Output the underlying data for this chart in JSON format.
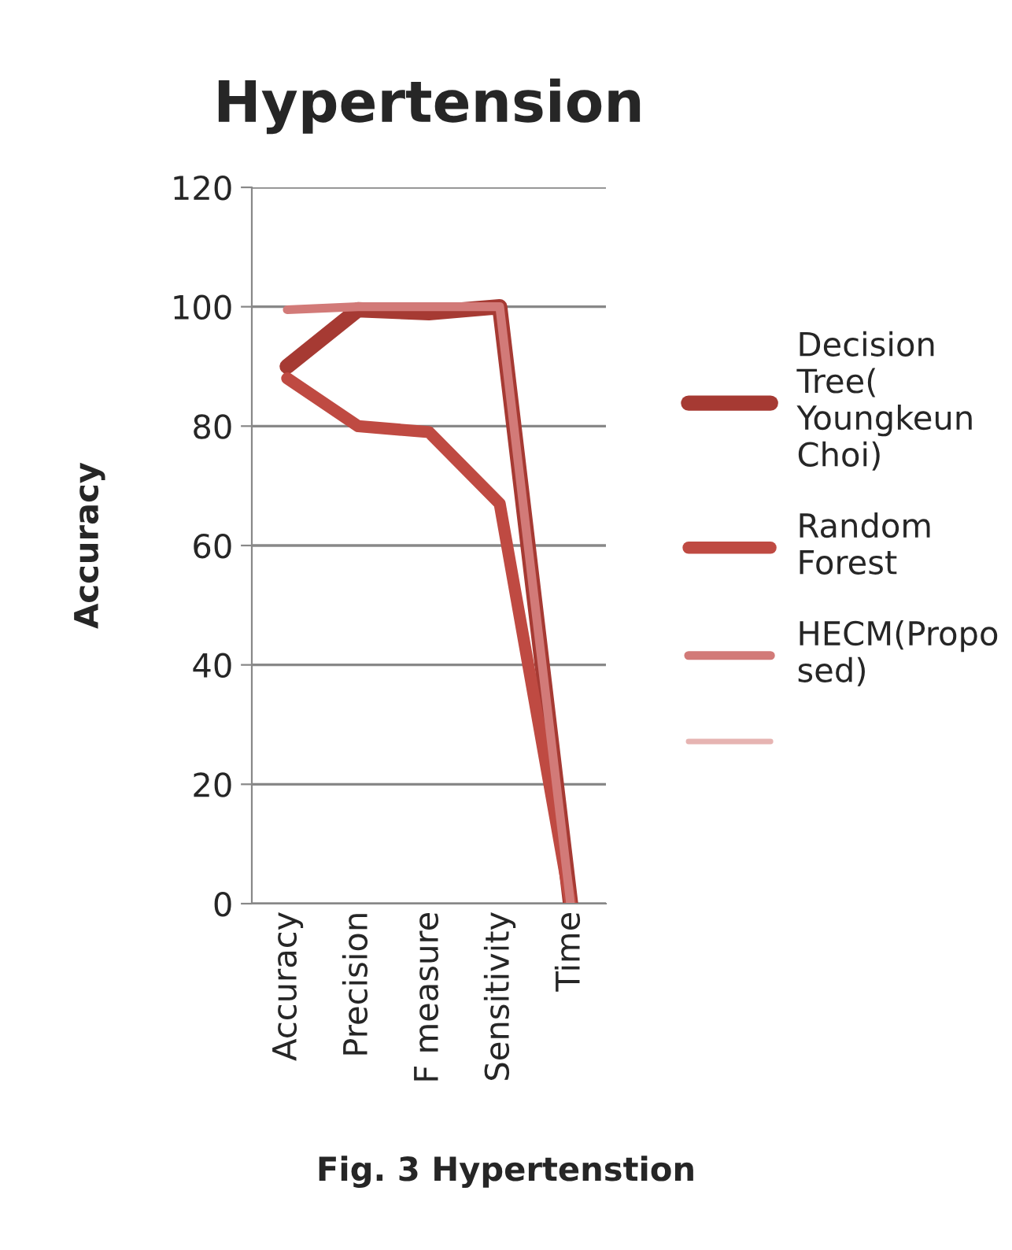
{
  "chart_data": {
    "type": "line",
    "title": "Hypertension",
    "ylabel": "Accuracy",
    "categories": [
      "Accuracy",
      "Precision",
      "F measure",
      "Sensitivity",
      "Time"
    ],
    "series": [
      {
        "name": "Decision Tree( Youngkeun Choi)",
        "color": "#a63a33",
        "values": [
          90,
          99.5,
          99,
          100,
          0
        ]
      },
      {
        "name": "Random Forest",
        "color": "#bf4a42",
        "values": [
          88,
          80,
          79,
          67,
          0
        ]
      },
      {
        "name": "HECM(Proposed)",
        "color": "#d27a78",
        "values": [
          99.5,
          100,
          100,
          100,
          0
        ]
      },
      {
        "color": "#e6b4b2",
        "values": [
          null,
          null,
          null,
          null,
          null
        ]
      }
    ],
    "ylim": [
      0,
      120
    ],
    "yticks": [
      0,
      20,
      40,
      60,
      80,
      100,
      120
    ],
    "grid": "y",
    "legend": "right",
    "annotations": [
      "Fig. 3 Hypertenstion"
    ]
  }
}
